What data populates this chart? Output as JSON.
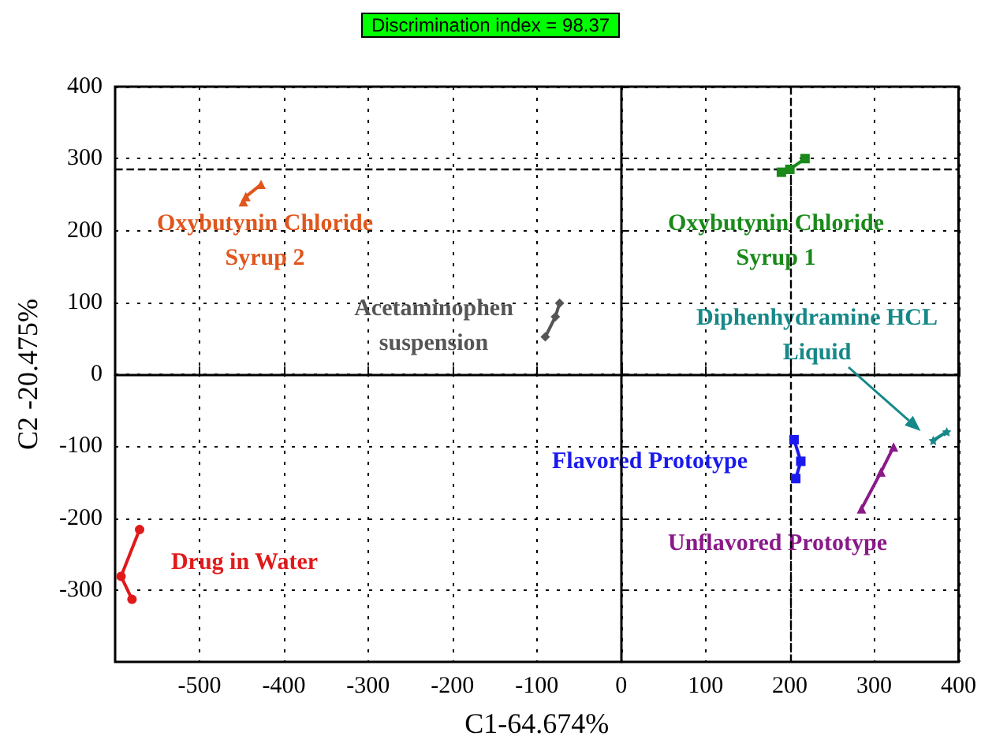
{
  "chart_data": {
    "type": "line",
    "title": "Discrimination index = 98.37",
    "xlabel": "C1-64.674%",
    "ylabel": "C2 -20.475%",
    "xlim": [
      -600,
      400
    ],
    "xticks": [
      -500,
      -400,
      -300,
      -200,
      -100,
      0,
      100,
      200,
      300,
      400
    ],
    "ylim": [
      -400,
      400
    ],
    "yticks": [
      -300,
      -200,
      -100,
      0,
      100,
      200,
      300,
      400
    ],
    "grid": true,
    "legend": false,
    "ref_lines": [
      {
        "axis": "y",
        "value": 285,
        "line_style": "dashed",
        "color": "#000000"
      },
      {
        "axis": "x",
        "value": 200,
        "line_style": "dashed",
        "color": "#000000"
      }
    ],
    "series": [
      {
        "name": "Oxybutynin Chloride Syrup 2",
        "color": "#e0561c",
        "marker": "triangle",
        "x": [
          -448,
          -445,
          -427
        ],
        "values": [
          240,
          247,
          264
        ]
      },
      {
        "name": "Acetaminophen suspension",
        "color": "#555555",
        "marker": "diamond",
        "x": [
          -90,
          -78,
          -73
        ],
        "values": [
          52,
          80,
          99
        ]
      },
      {
        "name": "Oxybutynin Chloride Syrup 1",
        "color": "#1a8a1a",
        "marker": "square",
        "x": [
          190,
          200,
          218
        ],
        "values": [
          281,
          285,
          300
        ]
      },
      {
        "name": "Diphenhydramine HCL Liquid",
        "color": "#168888",
        "marker": "star",
        "x": [
          370,
          386
        ],
        "values": [
          -92,
          -80
        ]
      },
      {
        "name": "Flavored Prototype",
        "color": "#1a1aee",
        "marker": "square",
        "x": [
          205,
          213,
          207
        ],
        "values": [
          -91,
          -121,
          -145
        ]
      },
      {
        "name": "Unflavored Prototype",
        "color": "#8a1a8a",
        "marker": "triangle",
        "x": [
          285,
          308,
          323
        ],
        "values": [
          -187,
          -136,
          -101
        ]
      },
      {
        "name": "Drug in Water",
        "color": "#e01a1a",
        "marker": "circle",
        "x": [
          -571,
          -593,
          -580
        ],
        "values": [
          -216,
          -281,
          -313
        ]
      }
    ]
  }
}
